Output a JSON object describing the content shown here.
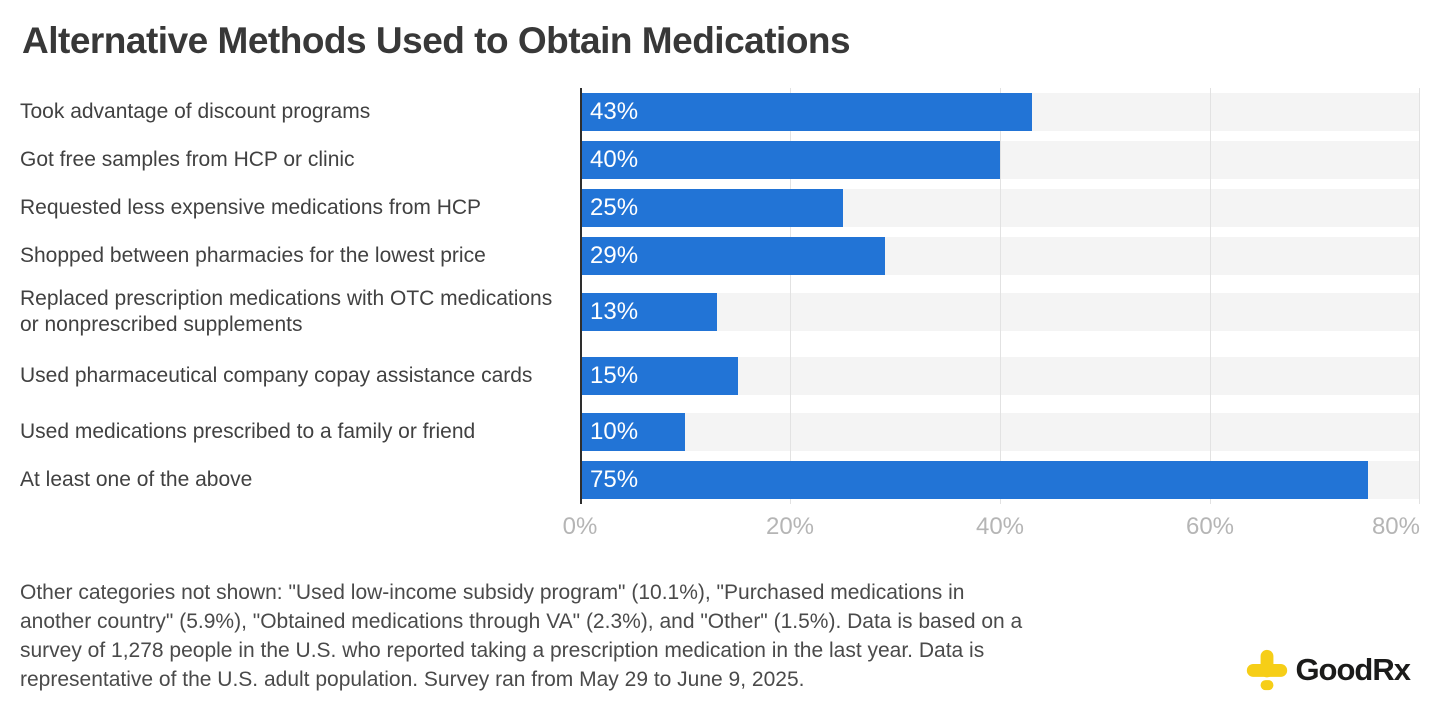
{
  "title": "Alternative Methods Used to Obtain Medications",
  "chart_data": {
    "type": "bar",
    "orientation": "horizontal",
    "title": "Alternative Methods Used to Obtain Medications",
    "categories": [
      "Took advantage of discount programs",
      "Got free samples from HCP or clinic",
      "Requested less expensive medications from HCP",
      "Shopped between pharmacies for the lowest price",
      "Replaced prescription medications with OTC medications or nonprescribed supplements",
      "Used pharmaceutical company copay assistance cards",
      "Used medications prescribed to a family or friend",
      "At least one of the above"
    ],
    "values": [
      43,
      40,
      25,
      29,
      13,
      15,
      10,
      75
    ],
    "value_labels": [
      "43%",
      "40%",
      "25%",
      "29%",
      "13%",
      "15%",
      "10%",
      "75%"
    ],
    "xlim": [
      0,
      80
    ],
    "x_ticks": [
      "0%",
      "20%",
      "40%",
      "60%",
      "80%"
    ],
    "grid": true,
    "legend": "none",
    "bar_color": "#2274d6",
    "track_color": "#f4f4f4",
    "gridline_color": "#e2e2e2",
    "axis_line_color": "#2e2e2e",
    "tick_label_color": "#b5b5b5"
  },
  "footnote": {
    "lines": [
      "Other categories not shown: \"Used low-income subsidy program\" (10.1%), \"Purchased medications in",
      "another country\" (5.9%), \"Obtained medications through VA\" (2.3%), and \"Other\" (1.5%). Data is based on a",
      "survey of 1,278 people in the U.S. who reported taking a prescription medication in the last year. Data is",
      "representative of the U.S. adult population. Survey ran from May 29 to June 9, 2025."
    ]
  },
  "logo": {
    "brand": "GoodRx",
    "cross_color": "#f6ce17",
    "text_color": "#1b1b1a"
  }
}
